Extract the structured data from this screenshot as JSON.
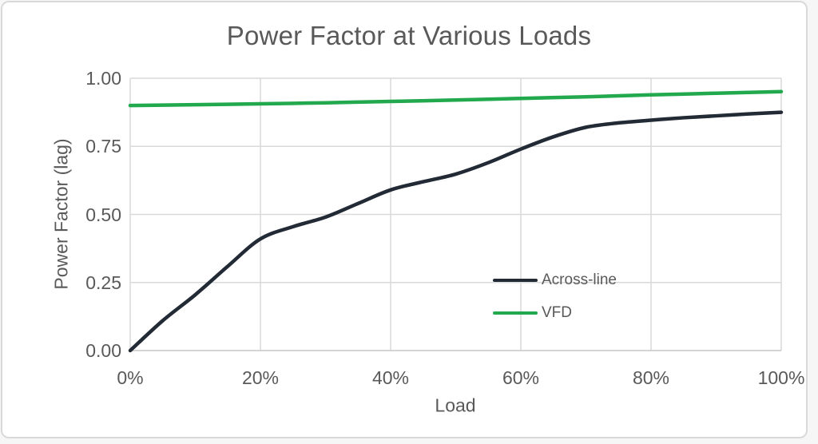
{
  "window": {
    "background_color": "#FFFFFF",
    "border_color": "#D9D9D9"
  },
  "colors": {
    "text": "#595959",
    "gridline": "#D9D9D9",
    "axis_line": "#C6C6C6",
    "across_line": "#222A35",
    "vfd_green": "#22A84D"
  },
  "chart_data": {
    "type": "line",
    "title": "Power Factor at Various Loads",
    "xlabel": "Load",
    "ylabel": "Power Factor (lag)",
    "xlim": [
      0,
      100
    ],
    "ylim": [
      0,
      1
    ],
    "grid": true,
    "legend_position": "inside-right",
    "x_tick_labels": [
      "0%",
      "20%",
      "40%",
      "60%",
      "80%",
      "100%"
    ],
    "y_tick_labels": [
      "1.00",
      "0.75",
      "0.50",
      "0.25",
      "0.00"
    ],
    "series": [
      {
        "name": "Across-line",
        "color": "#222A35",
        "x": [
          0,
          5,
          10,
          15,
          20,
          25,
          30,
          35,
          40,
          45,
          50,
          55,
          60,
          65,
          70,
          75,
          80,
          85,
          90,
          95,
          100
        ],
        "values": [
          0.0,
          0.11,
          0.205,
          0.31,
          0.41,
          0.455,
          0.49,
          0.54,
          0.59,
          0.62,
          0.648,
          0.69,
          0.74,
          0.785,
          0.82,
          0.836,
          0.846,
          0.855,
          0.862,
          0.869,
          0.875
        ]
      },
      {
        "name": "VFD",
        "color": "#22A84D",
        "x": [
          0,
          10,
          20,
          30,
          40,
          50,
          60,
          70,
          80,
          90,
          100
        ],
        "values": [
          0.9,
          0.903,
          0.906,
          0.91,
          0.915,
          0.92,
          0.926,
          0.932,
          0.939,
          0.945,
          0.951
        ]
      }
    ]
  }
}
